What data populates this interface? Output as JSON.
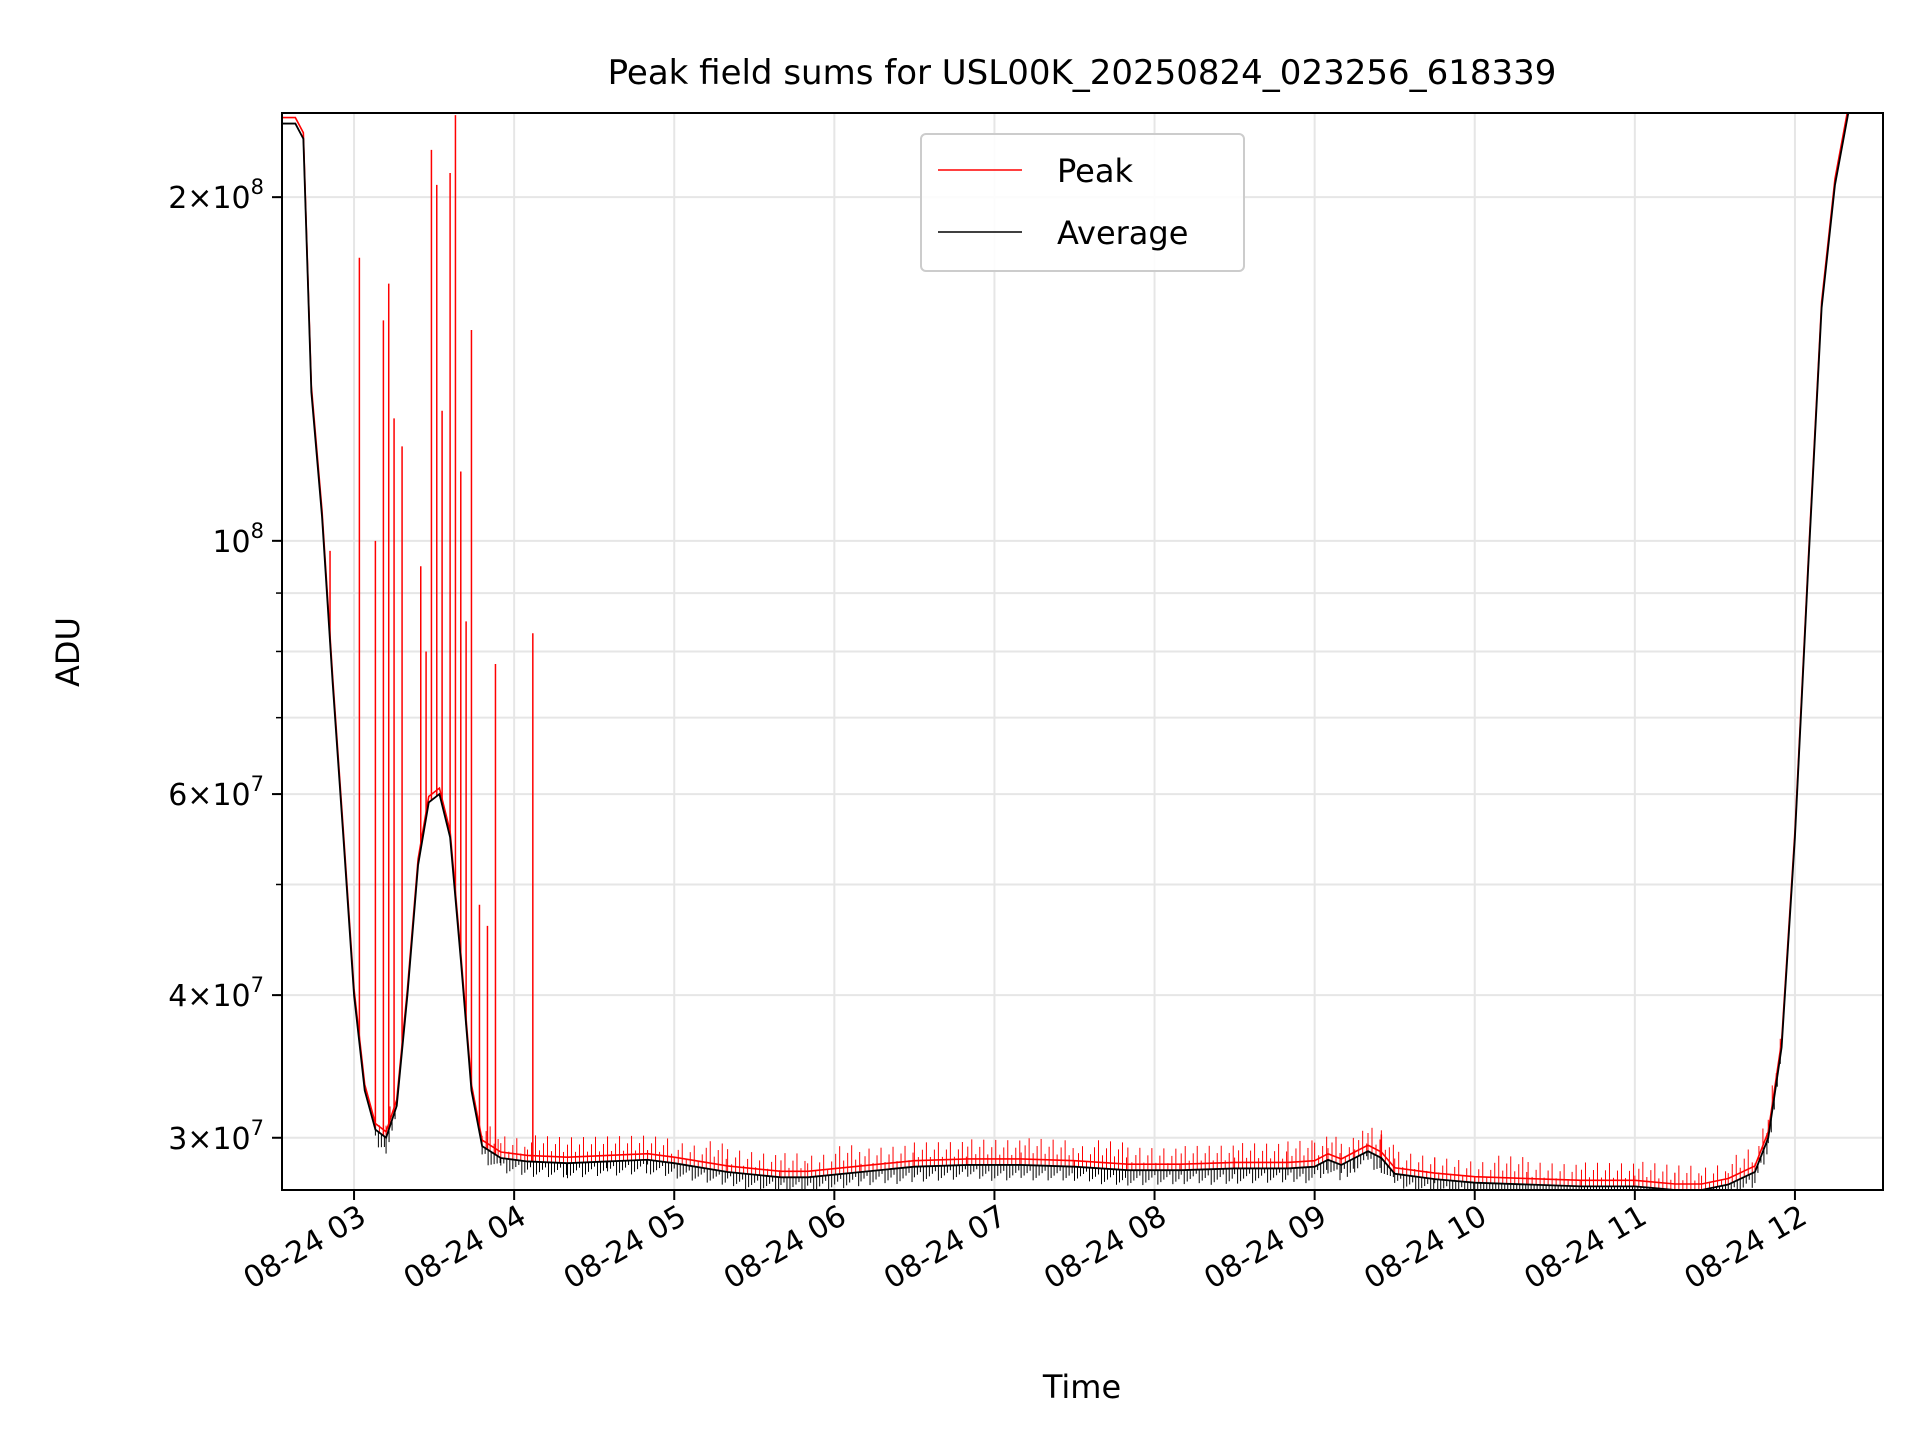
{
  "chart_data": {
    "type": "line",
    "title": "Peak field sums for USL00K_20250824_023256_618339",
    "xlabel": "Time",
    "ylabel": "ADU",
    "yscale": "log",
    "xlim": [
      "2025-08-24 02:33",
      "2025-08-24 12:33"
    ],
    "ylim": [
      27000000,
      237000000
    ],
    "grid": true,
    "legend_position": "upper center",
    "x_ticks": [
      {
        "value": "2025-08-24 03:00",
        "label": "08-24 03"
      },
      {
        "value": "2025-08-24 04:00",
        "label": "08-24 04"
      },
      {
        "value": "2025-08-24 05:00",
        "label": "08-24 05"
      },
      {
        "value": "2025-08-24 06:00",
        "label": "08-24 06"
      },
      {
        "value": "2025-08-24 07:00",
        "label": "08-24 07"
      },
      {
        "value": "2025-08-24 08:00",
        "label": "08-24 08"
      },
      {
        "value": "2025-08-24 09:00",
        "label": "08-24 09"
      },
      {
        "value": "2025-08-24 10:00",
        "label": "08-24 10"
      },
      {
        "value": "2025-08-24 11:00",
        "label": "08-24 11"
      },
      {
        "value": "2025-08-24 12:00",
        "label": "08-24 12"
      }
    ],
    "y_ticks": [
      {
        "value": 30000000,
        "mant": "3",
        "exp": "7"
      },
      {
        "value": 40000000,
        "mant": "4",
        "exp": "7"
      },
      {
        "value": 60000000,
        "mant": "6",
        "exp": "7"
      },
      {
        "value": 100000000,
        "mant": "",
        "exp": "8"
      },
      {
        "value": 200000000,
        "mant": "2",
        "exp": "8"
      }
    ],
    "series": [
      {
        "name": "Average",
        "color": "#000000",
        "points": [
          [
            "2025-08-24 02:33",
            232000000
          ],
          [
            "2025-08-24 02:38",
            232000000
          ],
          [
            "2025-08-24 02:41",
            225000000
          ],
          [
            "2025-08-24 02:44",
            135000000
          ],
          [
            "2025-08-24 02:48",
            105000000
          ],
          [
            "2025-08-24 02:52",
            75000000
          ],
          [
            "2025-08-24 02:56",
            55000000
          ],
          [
            "2025-08-24 03:00",
            40000000
          ],
          [
            "2025-08-24 03:04",
            33000000
          ],
          [
            "2025-08-24 03:08",
            30500000
          ],
          [
            "2025-08-24 03:12",
            30000000
          ],
          [
            "2025-08-24 03:16",
            32000000
          ],
          [
            "2025-08-24 03:20",
            40000000
          ],
          [
            "2025-08-24 03:24",
            52000000
          ],
          [
            "2025-08-24 03:28",
            59000000
          ],
          [
            "2025-08-24 03:32",
            60000000
          ],
          [
            "2025-08-24 03:36",
            55000000
          ],
          [
            "2025-08-24 03:40",
            43000000
          ],
          [
            "2025-08-24 03:44",
            33000000
          ],
          [
            "2025-08-24 03:48",
            29500000
          ],
          [
            "2025-08-24 03:55",
            28800000
          ],
          [
            "2025-08-24 04:05",
            28600000
          ],
          [
            "2025-08-24 04:20",
            28500000
          ],
          [
            "2025-08-24 04:35",
            28600000
          ],
          [
            "2025-08-24 04:50",
            28700000
          ],
          [
            "2025-08-24 05:00",
            28500000
          ],
          [
            "2025-08-24 05:20",
            28000000
          ],
          [
            "2025-08-24 05:40",
            27700000
          ],
          [
            "2025-08-24 05:50",
            27700000
          ],
          [
            "2025-08-24 06:10",
            28000000
          ],
          [
            "2025-08-24 06:30",
            28300000
          ],
          [
            "2025-08-24 06:50",
            28400000
          ],
          [
            "2025-08-24 07:10",
            28400000
          ],
          [
            "2025-08-24 07:30",
            28300000
          ],
          [
            "2025-08-24 07:50",
            28100000
          ],
          [
            "2025-08-24 08:10",
            28100000
          ],
          [
            "2025-08-24 08:30",
            28200000
          ],
          [
            "2025-08-24 08:50",
            28200000
          ],
          [
            "2025-08-24 09:00",
            28300000
          ],
          [
            "2025-08-24 09:05",
            28700000
          ],
          [
            "2025-08-24 09:10",
            28400000
          ],
          [
            "2025-08-24 09:15",
            28800000
          ],
          [
            "2025-08-24 09:20",
            29200000
          ],
          [
            "2025-08-24 09:25",
            28800000
          ],
          [
            "2025-08-24 09:30",
            27900000
          ],
          [
            "2025-08-24 09:45",
            27600000
          ],
          [
            "2025-08-24 10:00",
            27400000
          ],
          [
            "2025-08-24 10:20",
            27300000
          ],
          [
            "2025-08-24 10:40",
            27200000
          ],
          [
            "2025-08-24 11:00",
            27200000
          ],
          [
            "2025-08-24 11:15",
            27000000
          ],
          [
            "2025-08-24 11:25",
            27000000
          ],
          [
            "2025-08-24 11:35",
            27300000
          ],
          [
            "2025-08-24 11:45",
            28000000
          ],
          [
            "2025-08-24 11:50",
            30000000
          ],
          [
            "2025-08-24 11:55",
            36000000
          ],
          [
            "2025-08-24 12:00",
            55000000
          ],
          [
            "2025-08-24 12:05",
            95000000
          ],
          [
            "2025-08-24 12:10",
            160000000
          ],
          [
            "2025-08-24 12:15",
            205000000
          ],
          [
            "2025-08-24 12:20",
            237000000
          ]
        ]
      },
      {
        "name": "Peak",
        "color": "#ff0000",
        "spikes": [
          [
            "2025-08-24 02:51",
            98000000
          ],
          [
            "2025-08-24 03:02",
            177000000
          ],
          [
            "2025-08-24 03:08",
            100000000
          ],
          [
            "2025-08-24 03:11",
            156000000
          ],
          [
            "2025-08-24 03:13",
            168000000
          ],
          [
            "2025-08-24 03:15",
            128000000
          ],
          [
            "2025-08-24 03:18",
            121000000
          ],
          [
            "2025-08-24 03:25",
            95000000
          ],
          [
            "2025-08-24 03:27",
            80000000
          ],
          [
            "2025-08-24 03:29",
            220000000
          ],
          [
            "2025-08-24 03:31",
            205000000
          ],
          [
            "2025-08-24 03:33",
            130000000
          ],
          [
            "2025-08-24 03:36",
            210000000
          ],
          [
            "2025-08-24 03:38",
            236000000
          ],
          [
            "2025-08-24 03:40",
            115000000
          ],
          [
            "2025-08-24 03:42",
            85000000
          ],
          [
            "2025-08-24 03:44",
            153000000
          ],
          [
            "2025-08-24 03:47",
            48000000
          ],
          [
            "2025-08-24 03:50",
            46000000
          ],
          [
            "2025-08-24 03:53",
            78000000
          ],
          [
            "2025-08-24 04:07",
            83000000
          ],
          [
            "2025-08-24 09:25",
            30200000
          ]
        ]
      }
    ]
  }
}
